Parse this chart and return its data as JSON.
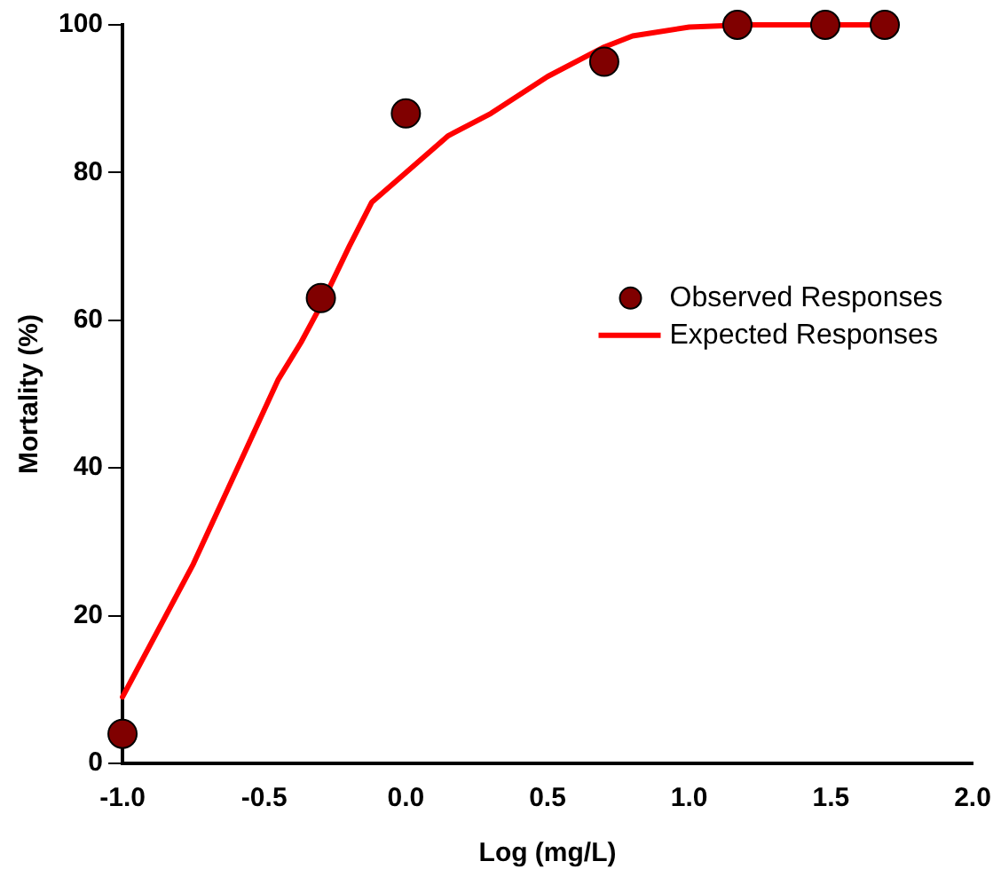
{
  "chart_data": {
    "type": "scatter",
    "xlabel": "Log (mg/L)",
    "ylabel": "Mortality (%)",
    "xlim": [
      -1.0,
      2.0
    ],
    "xticks": [
      {
        "value": -1,
        "label": "-1.0"
      },
      {
        "value": -0.5,
        "label": "-0.5"
      },
      {
        "value": 0,
        "label": "0.0"
      },
      {
        "value": 0.5,
        "label": "0.5"
      },
      {
        "value": 1,
        "label": "1.0"
      },
      {
        "value": 1.5,
        "label": "1.5"
      },
      {
        "value": 2,
        "label": "2.0"
      }
    ],
    "ylim": [
      0,
      100
    ],
    "yticks": [
      0,
      20,
      40,
      60,
      80,
      100
    ],
    "grid": false,
    "legend": "right",
    "series": [
      {
        "name": "Observed Responses",
        "type": "scatter",
        "marker": "circle",
        "color": "#800000",
        "x": [
          -1.0,
          -0.3,
          0.0,
          0.7,
          1.17,
          1.48,
          1.69
        ],
        "values": [
          4,
          63,
          88,
          95,
          100,
          100,
          100
        ]
      },
      {
        "name": "Expected Responses",
        "type": "line",
        "marker": "none",
        "color": "#ff0000",
        "x": [
          -1.0,
          -0.75,
          -0.45,
          -0.37,
          -0.3,
          -0.2,
          -0.12,
          0.0,
          0.15,
          0.3,
          0.5,
          0.7,
          0.8,
          1.0,
          1.2,
          1.4,
          1.69
        ],
        "values": [
          9,
          27,
          52,
          57,
          62,
          70,
          76,
          80,
          85,
          88,
          93,
          97,
          98.5,
          99.7,
          100,
          100,
          100
        ]
      }
    ]
  }
}
